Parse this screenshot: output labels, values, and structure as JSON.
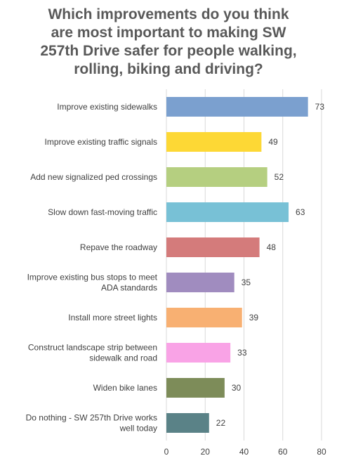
{
  "title_lines": [
    "Which improvements do you think",
    "are most important to making SW",
    "257th Drive safer for people walking,",
    "rolling, biking and driving?"
  ],
  "chart_data": {
    "type": "bar",
    "orientation": "horizontal",
    "title": "Which improvements do you think are most important to making SW 257th Drive safer for people walking, rolling, biking and driving?",
    "categories": [
      [
        "Improve existing sidewalks"
      ],
      [
        "Improve existing traffic signals"
      ],
      [
        "Add new signalized ped crossings"
      ],
      [
        "Slow down fast-moving traffic"
      ],
      [
        "Repave the roadway"
      ],
      [
        "Improve existing bus stops to meet",
        "ADA standards"
      ],
      [
        "Install more street lights"
      ],
      [
        "Construct landscape strip between",
        "sidewalk and road"
      ],
      [
        "Widen bike lanes"
      ],
      [
        "Do nothing - SW 257th Drive works",
        "well today"
      ]
    ],
    "values": [
      73,
      49,
      52,
      63,
      48,
      35,
      39,
      33,
      30,
      22
    ],
    "colors": [
      "#7ba0cf",
      "#fdd835",
      "#b5cf80",
      "#78c1d6",
      "#d47b7b",
      "#a08cbf",
      "#f8b072",
      "#f9a3e6",
      "#7d8c59",
      "#5a8287"
    ],
    "xlim": [
      0,
      80
    ],
    "xticks": [
      "0",
      "20",
      "40",
      "60",
      "80"
    ],
    "xlabel": "",
    "ylabel": "",
    "grid": "vertical",
    "legend": "none"
  }
}
